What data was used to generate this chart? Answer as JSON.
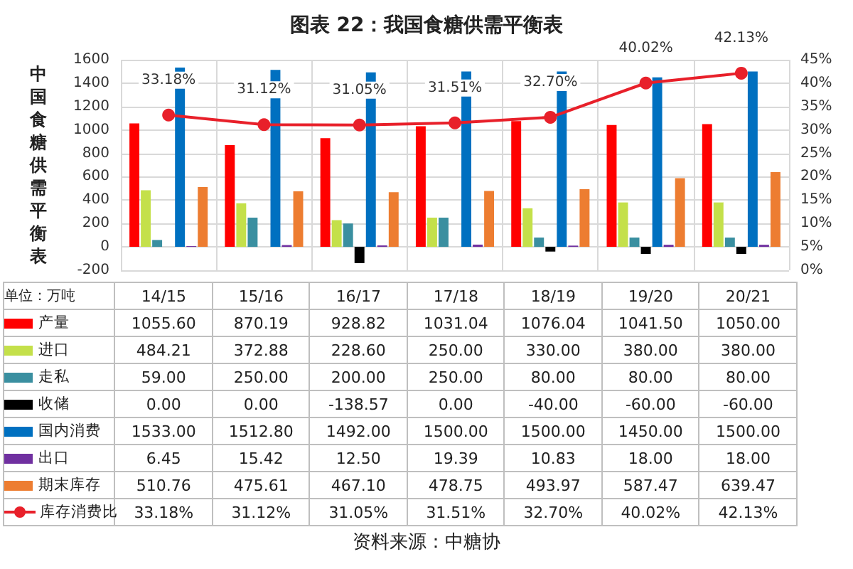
{
  "chart_data": {
    "type": "bar",
    "title": "图表 22：我国食糖供需平衡表",
    "ylabel": "中国食糖供需平衡表",
    "annotations": [
      "单位：万吨",
      "资料来源：中糖协"
    ],
    "categories": [
      "14/15",
      "15/16",
      "16/17",
      "17/18",
      "18/19",
      "19/20",
      "20/21"
    ],
    "series": [
      {
        "name": "产量",
        "color": "#ff0000",
        "values": [
          1055.6,
          870.19,
          928.82,
          1031.04,
          1076.04,
          1041.5,
          1050
        ],
        "value_labels": [
          "1055.60",
          "870.19",
          "928.82",
          "1031.04",
          "1076.04",
          "1041.50",
          "1050.00"
        ]
      },
      {
        "name": "进口",
        "color": "#c4e04a",
        "values": [
          484.21,
          372.88,
          228.6,
          250,
          330,
          380,
          380
        ],
        "value_labels": [
          "484.21",
          "372.88",
          "228.60",
          "250.00",
          "330.00",
          "380.00",
          "380.00"
        ]
      },
      {
        "name": "走私",
        "color": "#3a8fa0",
        "values": [
          59,
          250,
          200,
          250,
          80,
          80,
          80
        ],
        "value_labels": [
          "59.00",
          "250.00",
          "200.00",
          "250.00",
          "80.00",
          "80.00",
          "80.00"
        ]
      },
      {
        "name": "收储",
        "color": "#000000",
        "values": [
          0,
          0,
          -138.57,
          0,
          -40,
          -60,
          -60
        ],
        "value_labels": [
          "0.00",
          "0.00",
          "-138.57",
          "0.00",
          "-40.00",
          "-60.00",
          "-60.00"
        ]
      },
      {
        "name": "国内消费",
        "color": "#0070c0",
        "values": [
          1533,
          1512.8,
          1492,
          1500,
          1500,
          1450,
          1500
        ],
        "value_labels": [
          "1533.00",
          "1512.80",
          "1492.00",
          "1500.00",
          "1500.00",
          "1450.00",
          "1500.00"
        ]
      },
      {
        "name": "出口",
        "color": "#7030a0",
        "values": [
          6.45,
          15.42,
          12.5,
          19.39,
          10.83,
          18,
          18
        ],
        "value_labels": [
          "6.45",
          "15.42",
          "12.50",
          "19.39",
          "10.83",
          "18.00",
          "18.00"
        ]
      },
      {
        "name": "期末库存",
        "color": "#ed7d31",
        "values": [
          510.76,
          475.61,
          467.1,
          478.75,
          493.97,
          587.47,
          639.47
        ],
        "value_labels": [
          "510.76",
          "475.61",
          "467.10",
          "478.75",
          "493.97",
          "587.47",
          "639.47"
        ]
      },
      {
        "name": "库存消费比",
        "type": "line",
        "axis": "y2",
        "color": "#e8202a",
        "values": [
          33.18,
          31.12,
          31.05,
          31.51,
          32.7,
          40.02,
          42.13
        ],
        "value_labels": [
          "33.18%",
          "31.12%",
          "31.05%",
          "31.51%",
          "32.70%",
          "40.02%",
          "42.13%"
        ]
      }
    ],
    "ylim": [
      -200,
      1600
    ],
    "yticks": [
      -200,
      0,
      200,
      400,
      600,
      800,
      1000,
      1200,
      1400,
      1600
    ],
    "y2lim": [
      0,
      45
    ],
    "y2ticks": [
      {
        "value": 0,
        "label": "0%"
      },
      {
        "value": 5,
        "label": "5%"
      },
      {
        "value": 10,
        "label": "10%"
      },
      {
        "value": 15,
        "label": "15%"
      },
      {
        "value": 20,
        "label": "20%"
      },
      {
        "value": 25,
        "label": "25%"
      },
      {
        "value": 30,
        "label": "30%"
      },
      {
        "value": 35,
        "label": "35%"
      },
      {
        "value": 40,
        "label": "40%"
      },
      {
        "value": 45,
        "label": "45%"
      }
    ],
    "grid": true,
    "legend": "bottom left",
    "marker": "circle",
    "line_style": "solid",
    "data_labels": true
  }
}
